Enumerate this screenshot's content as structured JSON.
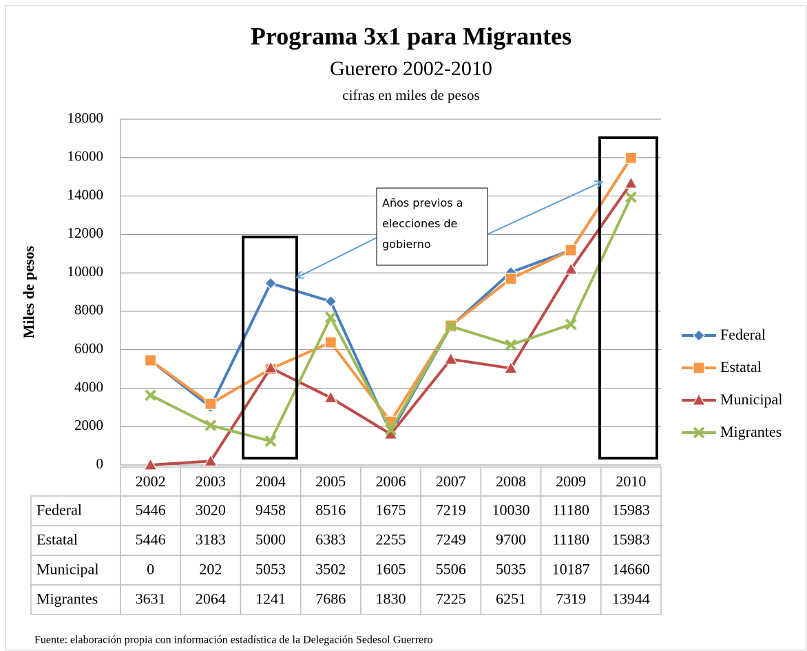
{
  "chart_data": {
    "type": "line",
    "title": "Programa 3x1 para Migrantes",
    "subtitle": "Guerero 2002-2010",
    "note": "cifras en miles de pesos",
    "y_label": "Miles de pesos",
    "annotation": "Años previos a elecciones de gobierno",
    "source": "Fuente: elaboración propia con información estadística de la Delegación Sedesol Guerrero",
    "categories": [
      "2002",
      "2003",
      "2004",
      "2005",
      "2006",
      "2007",
      "2008",
      "2009",
      "2010"
    ],
    "series": [
      {
        "name": "Federal",
        "color": "#4a7ebb",
        "marker": "diamond",
        "values": [
          5446,
          3020,
          9458,
          8516,
          1675,
          7219,
          10030,
          11180,
          15983
        ]
      },
      {
        "name": "Estatal",
        "color": "#f79646",
        "marker": "square",
        "values": [
          5446,
          3183,
          5000,
          6383,
          2255,
          7249,
          9700,
          11180,
          15983
        ]
      },
      {
        "name": "Municipal",
        "color": "#be4b48",
        "marker": "triangle",
        "values": [
          0,
          202,
          5053,
          3502,
          1605,
          5506,
          5035,
          10187,
          14660
        ]
      },
      {
        "name": "Migrantes",
        "color": "#9bbb59",
        "marker": "x",
        "values": [
          3631,
          2064,
          1241,
          7686,
          1830,
          7225,
          6251,
          7319,
          13944
        ]
      }
    ],
    "ylim": [
      0,
      18000
    ],
    "yticks": [
      0,
      2000,
      4000,
      6000,
      8000,
      10000,
      12000,
      14000,
      16000,
      18000
    ],
    "grid": true
  }
}
